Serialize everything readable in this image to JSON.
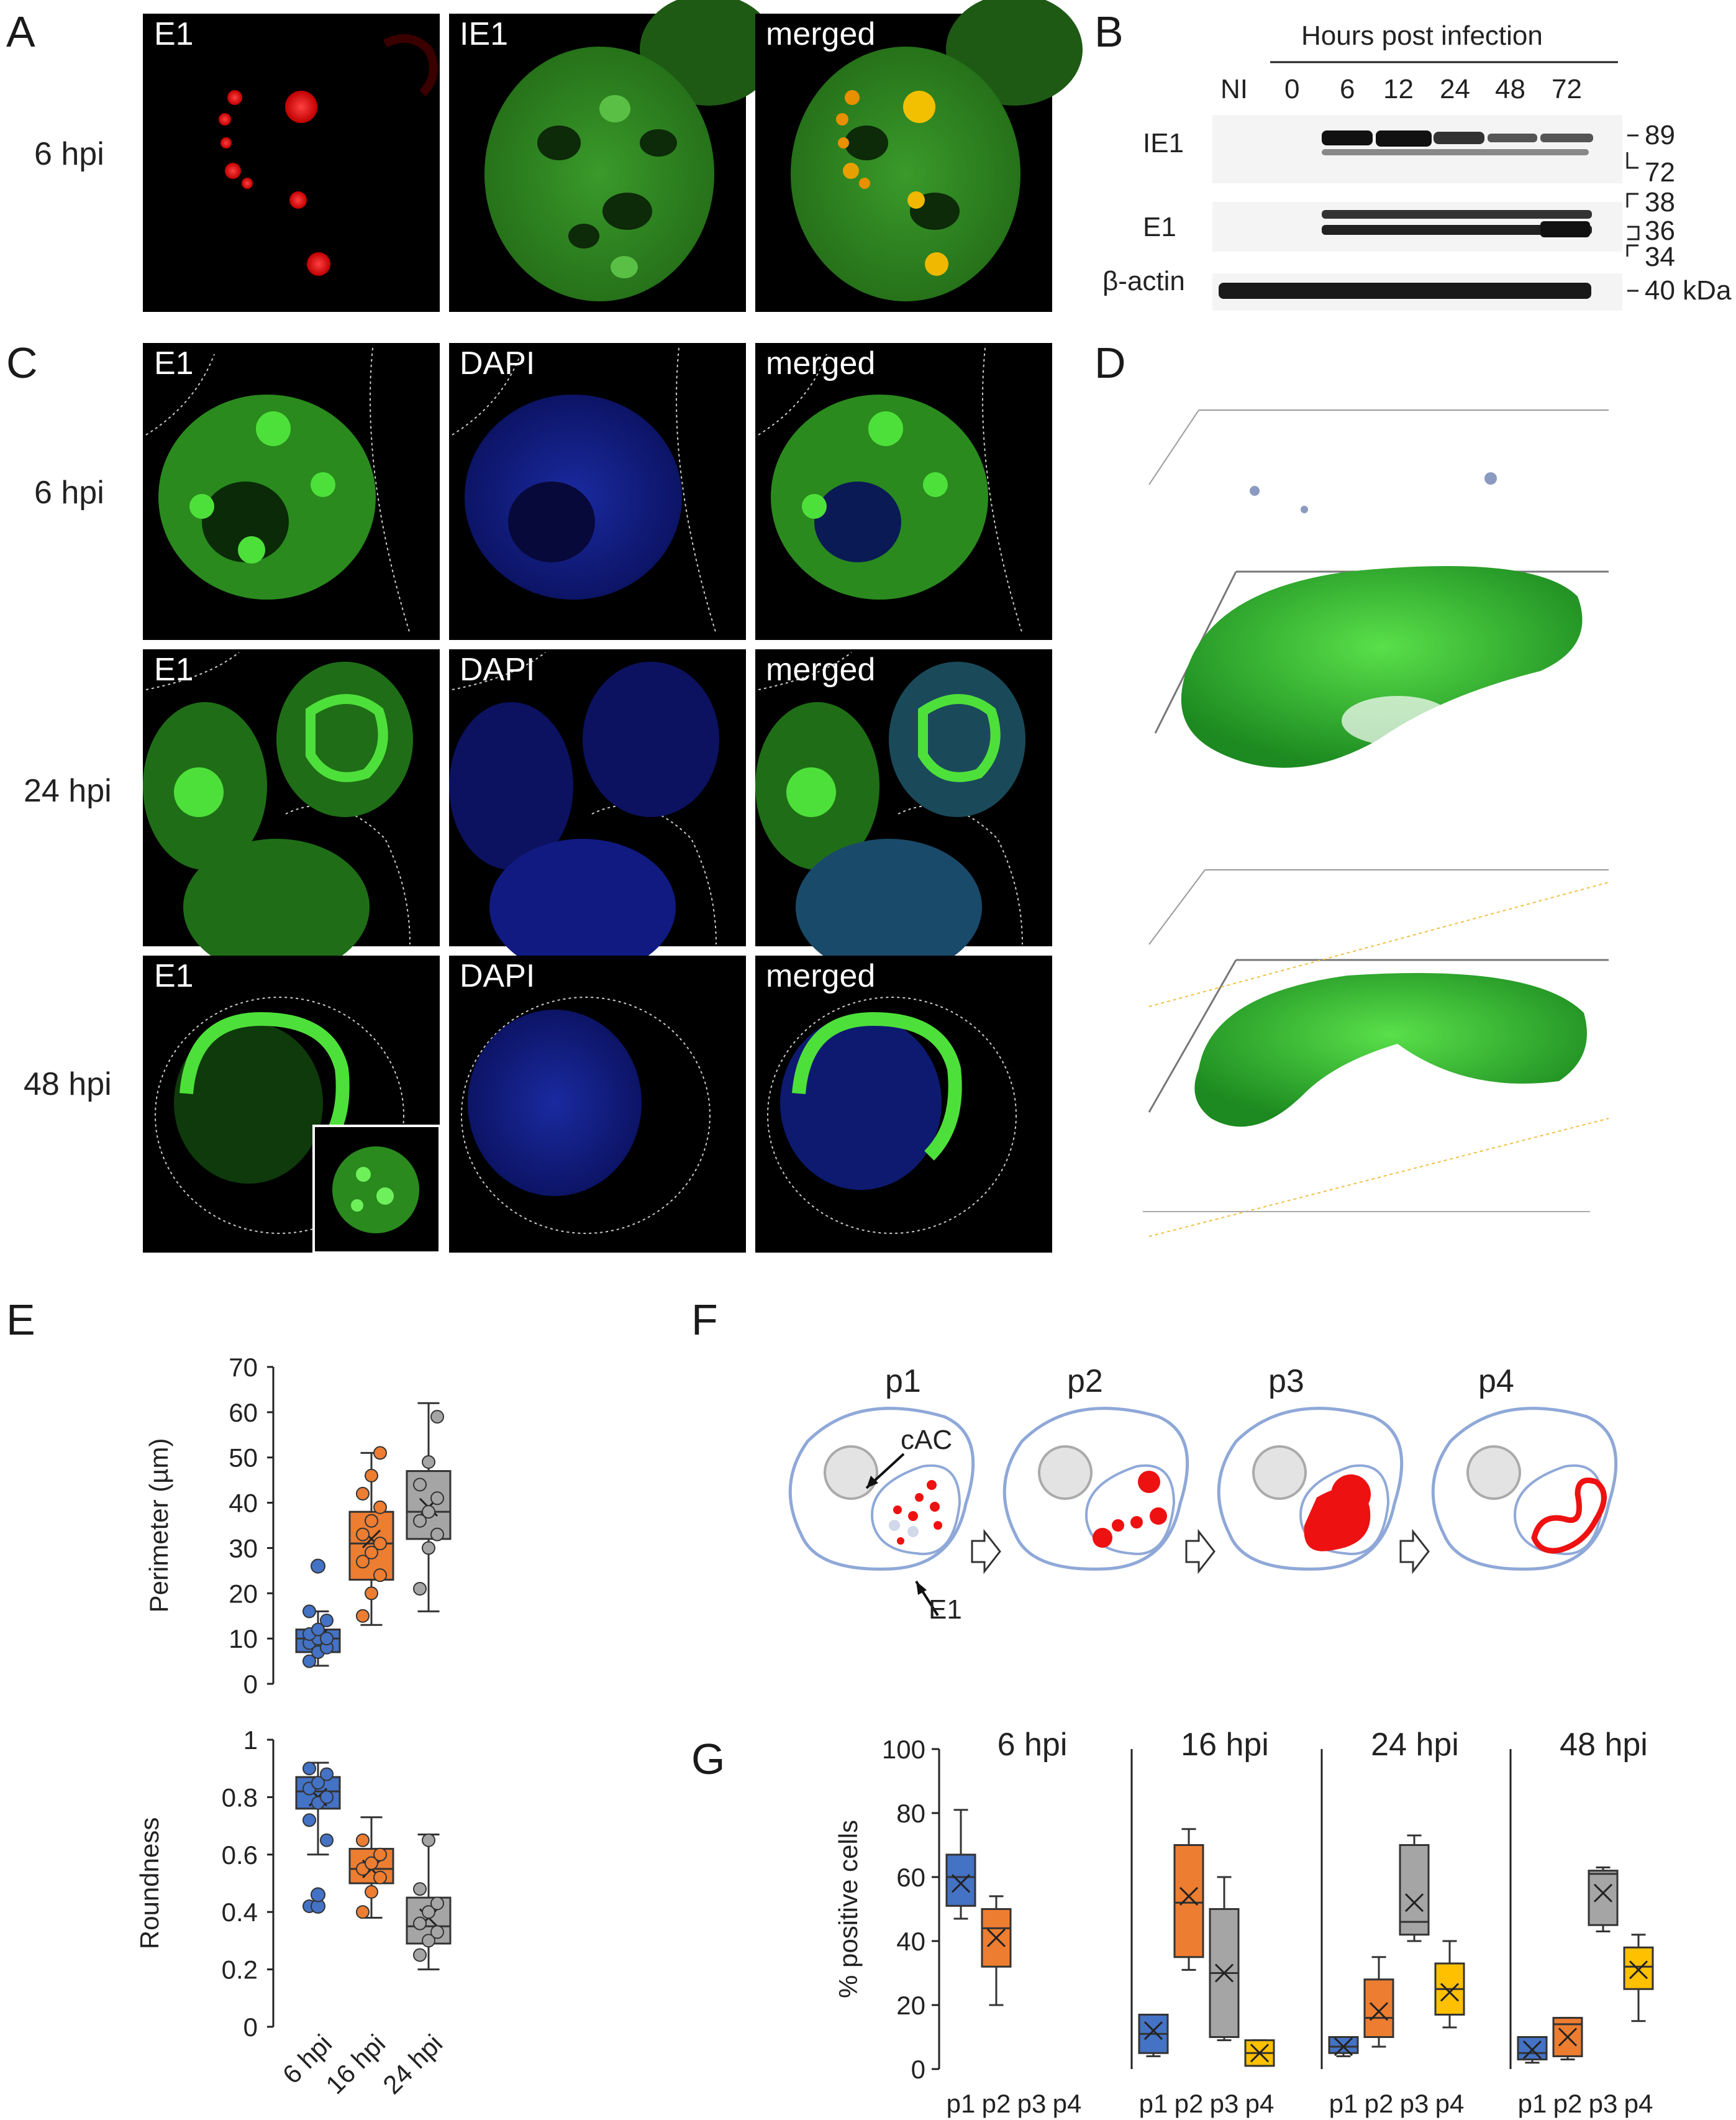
{
  "panels": {
    "A": "A",
    "B": "B",
    "C": "C",
    "D": "D",
    "E": "E",
    "F": "F",
    "G": "G"
  },
  "panel_A": {
    "row_label": "6 hpi",
    "images": [
      "E1",
      "IE1",
      "merged"
    ]
  },
  "panel_B": {
    "header": "Hours post infection",
    "lanes": [
      "NI",
      "0",
      "6",
      "12",
      "24",
      "48",
      "72"
    ],
    "rows": [
      "IE1",
      "E1",
      "β-actin"
    ],
    "markers": {
      "m89": "89",
      "m72": "72",
      "m38": "38",
      "m36": "36",
      "m34": "34",
      "m40": "40 kDa"
    }
  },
  "panel_C": {
    "rows": [
      {
        "label": "6 hpi",
        "images": [
          "E1",
          "DAPI",
          "merged"
        ]
      },
      {
        "label": "24 hpi",
        "images": [
          "E1",
          "DAPI",
          "merged"
        ]
      },
      {
        "label": "48 hpi",
        "images": [
          "E1",
          "DAPI",
          "merged"
        ]
      }
    ]
  },
  "panel_F": {
    "stages": [
      "p1",
      "p2",
      "p3",
      "p4"
    ],
    "label_cac": "cAC",
    "label_e1": "E1"
  },
  "chart_data": [
    {
      "type": "box",
      "id": "E-top",
      "ylabel": "Perimeter (µm)",
      "ylim": [
        0,
        70
      ],
      "yticks": [
        0,
        10,
        20,
        30,
        40,
        50,
        60,
        70
      ],
      "categories": [
        "6 hpi",
        "16 hpi",
        "24 hpi"
      ],
      "boxes": [
        {
          "category": "6 hpi",
          "color": "#4472c4",
          "min": 4,
          "q1": 7,
          "median": 10,
          "q3": 12,
          "max": 16,
          "mean": 10,
          "outliers": [
            26
          ],
          "points": [
            5,
            7,
            8,
            9,
            10,
            10,
            11,
            12,
            14,
            16,
            26
          ]
        },
        {
          "category": "16 hpi",
          "color": "#ed7d31",
          "min": 13,
          "q1": 23,
          "median": 31,
          "q3": 38,
          "max": 51,
          "mean": 32,
          "outliers": [],
          "points": [
            15,
            20,
            24,
            27,
            29,
            31,
            33,
            36,
            39,
            42,
            46,
            51
          ]
        },
        {
          "category": "24 hpi",
          "color": "#a5a5a5",
          "min": 16,
          "q1": 32,
          "median": 38,
          "q3": 47,
          "max": 62,
          "mean": 39,
          "outliers": [],
          "points": [
            21,
            30,
            33,
            36,
            38,
            41,
            44,
            49,
            59
          ]
        }
      ]
    },
    {
      "type": "box",
      "id": "E-bottom",
      "ylabel": "Roundness",
      "ylim": [
        0,
        1
      ],
      "yticks": [
        "0",
        "0.2",
        "0.4",
        "0.6",
        "0.8",
        "1"
      ],
      "categories": [
        "6 hpi",
        "16 hpi",
        "24 hpi"
      ],
      "boxes": [
        {
          "category": "6 hpi",
          "color": "#4472c4",
          "min": 0.6,
          "q1": 0.76,
          "median": 0.82,
          "q3": 0.87,
          "max": 0.92,
          "mean": 0.8,
          "outliers": [
            0.42,
            0.46
          ],
          "points": [
            0.42,
            0.46,
            0.65,
            0.72,
            0.78,
            0.8,
            0.83,
            0.85,
            0.88,
            0.9
          ]
        },
        {
          "category": "16 hpi",
          "color": "#ed7d31",
          "min": 0.38,
          "q1": 0.5,
          "median": 0.55,
          "q3": 0.62,
          "max": 0.73,
          "mean": 0.55,
          "outliers": [],
          "points": [
            0.4,
            0.47,
            0.52,
            0.55,
            0.57,
            0.6,
            0.65
          ]
        },
        {
          "category": "24 hpi",
          "color": "#a5a5a5",
          "min": 0.2,
          "q1": 0.29,
          "median": 0.35,
          "q3": 0.45,
          "max": 0.67,
          "mean": 0.38,
          "outliers": [],
          "points": [
            0.25,
            0.3,
            0.33,
            0.36,
            0.4,
            0.43,
            0.48,
            0.65
          ]
        }
      ]
    },
    {
      "type": "box",
      "id": "G",
      "ylabel": "% positive cells",
      "ylim": [
        0,
        100
      ],
      "yticks": [
        0,
        20,
        40,
        60,
        80,
        100
      ],
      "groups": [
        {
          "title": "6 hpi",
          "boxes": [
            {
              "category": "p1",
              "color": "#4472c4",
              "min": 47,
              "q1": 51,
              "median": 60,
              "q3": 67,
              "max": 81,
              "mean": 58
            },
            {
              "category": "p2",
              "color": "#ed7d31",
              "min": 20,
              "q1": 32,
              "median": 44,
              "q3": 50,
              "max": 54,
              "mean": 41
            }
          ]
        },
        {
          "title": "16 hpi",
          "boxes": [
            {
              "category": "p1",
              "color": "#4472c4",
              "min": 4,
              "q1": 5,
              "median": 11,
              "q3": 17,
              "max": 17,
              "mean": 12
            },
            {
              "category": "p2",
              "color": "#ed7d31",
              "min": 31,
              "q1": 35,
              "median": 52,
              "q3": 70,
              "max": 75,
              "mean": 54
            },
            {
              "category": "p3",
              "color": "#a5a5a5",
              "min": 9,
              "q1": 10,
              "median": 30,
              "q3": 50,
              "max": 60,
              "mean": 30
            },
            {
              "category": "p4",
              "color": "#ffc000",
              "min": 1,
              "q1": 1,
              "median": 5,
              "q3": 9,
              "max": 9,
              "mean": 5
            }
          ]
        },
        {
          "title": "24 hpi",
          "boxes": [
            {
              "category": "p1",
              "color": "#4472c4",
              "min": 4,
              "q1": 5,
              "median": 7,
              "q3": 10,
              "max": 10,
              "mean": 7
            },
            {
              "category": "p2",
              "color": "#ed7d31",
              "min": 7,
              "q1": 10,
              "median": 16,
              "q3": 28,
              "max": 35,
              "mean": 18
            },
            {
              "category": "p3",
              "color": "#a5a5a5",
              "min": 40,
              "q1": 42,
              "median": 46,
              "q3": 70,
              "max": 73,
              "mean": 52
            },
            {
              "category": "p4",
              "color": "#ffc000",
              "min": 13,
              "q1": 17,
              "median": 25,
              "q3": 33,
              "max": 40,
              "mean": 24
            }
          ]
        },
        {
          "title": "48 hpi",
          "boxes": [
            {
              "category": "p1",
              "color": "#4472c4",
              "min": 2,
              "q1": 3,
              "median": 5,
              "q3": 10,
              "max": 10,
              "mean": 6
            },
            {
              "category": "p2",
              "color": "#ed7d31",
              "min": 3,
              "q1": 4,
              "median": 14,
              "q3": 16,
              "max": 16,
              "mean": 10
            },
            {
              "category": "p3",
              "color": "#a5a5a5",
              "min": 43,
              "q1": 45,
              "median": 61,
              "q3": 62,
              "max": 63,
              "mean": 55
            },
            {
              "category": "p4",
              "color": "#ffc000",
              "min": 15,
              "q1": 25,
              "median": 32,
              "q3": 38,
              "max": 42,
              "mean": 31
            }
          ]
        }
      ]
    }
  ]
}
